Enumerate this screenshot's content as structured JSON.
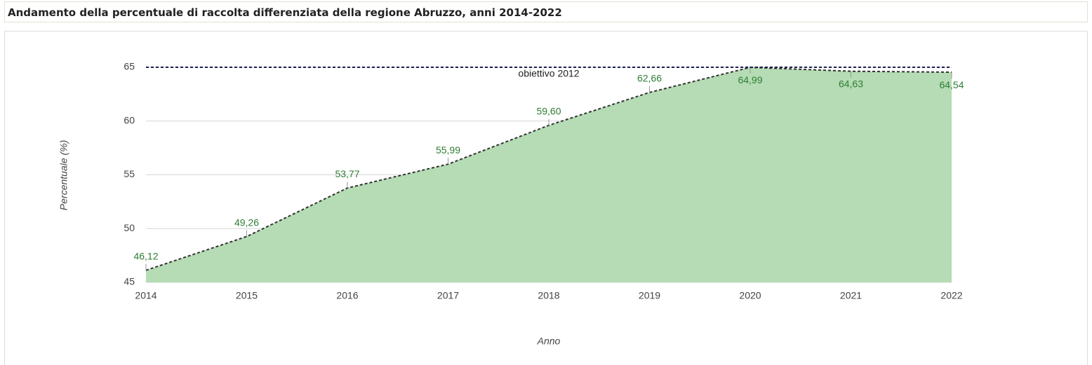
{
  "chart_data": {
    "type": "area",
    "title": "Andamento della percentuale di raccolta differenziata della regione Abruzzo, anni 2014-2022",
    "x_label": "Anno",
    "y_label": "Percentuale (%)",
    "categories": [
      "2014",
      "2015",
      "2016",
      "2017",
      "2018",
      "2019",
      "2020",
      "2021",
      "2022"
    ],
    "values": [
      46.12,
      49.26,
      53.77,
      55.99,
      59.6,
      62.66,
      64.99,
      64.63,
      64.54
    ],
    "value_labels": [
      "46,12",
      "49,26",
      "53,77",
      "55,99",
      "59,60",
      "62,66",
      "64,99",
      "64,63",
      "64,54"
    ],
    "color": "#b5dcb4",
    "line_color": "#333333",
    "label_color": "#2e7d32",
    "ylim": [
      45,
      65
    ],
    "yticks": [
      45,
      50,
      55,
      60,
      65
    ],
    "grid": true,
    "reference_line": {
      "value": 65,
      "label": "obiettivo 2012",
      "color": "#1a1f4e"
    }
  }
}
